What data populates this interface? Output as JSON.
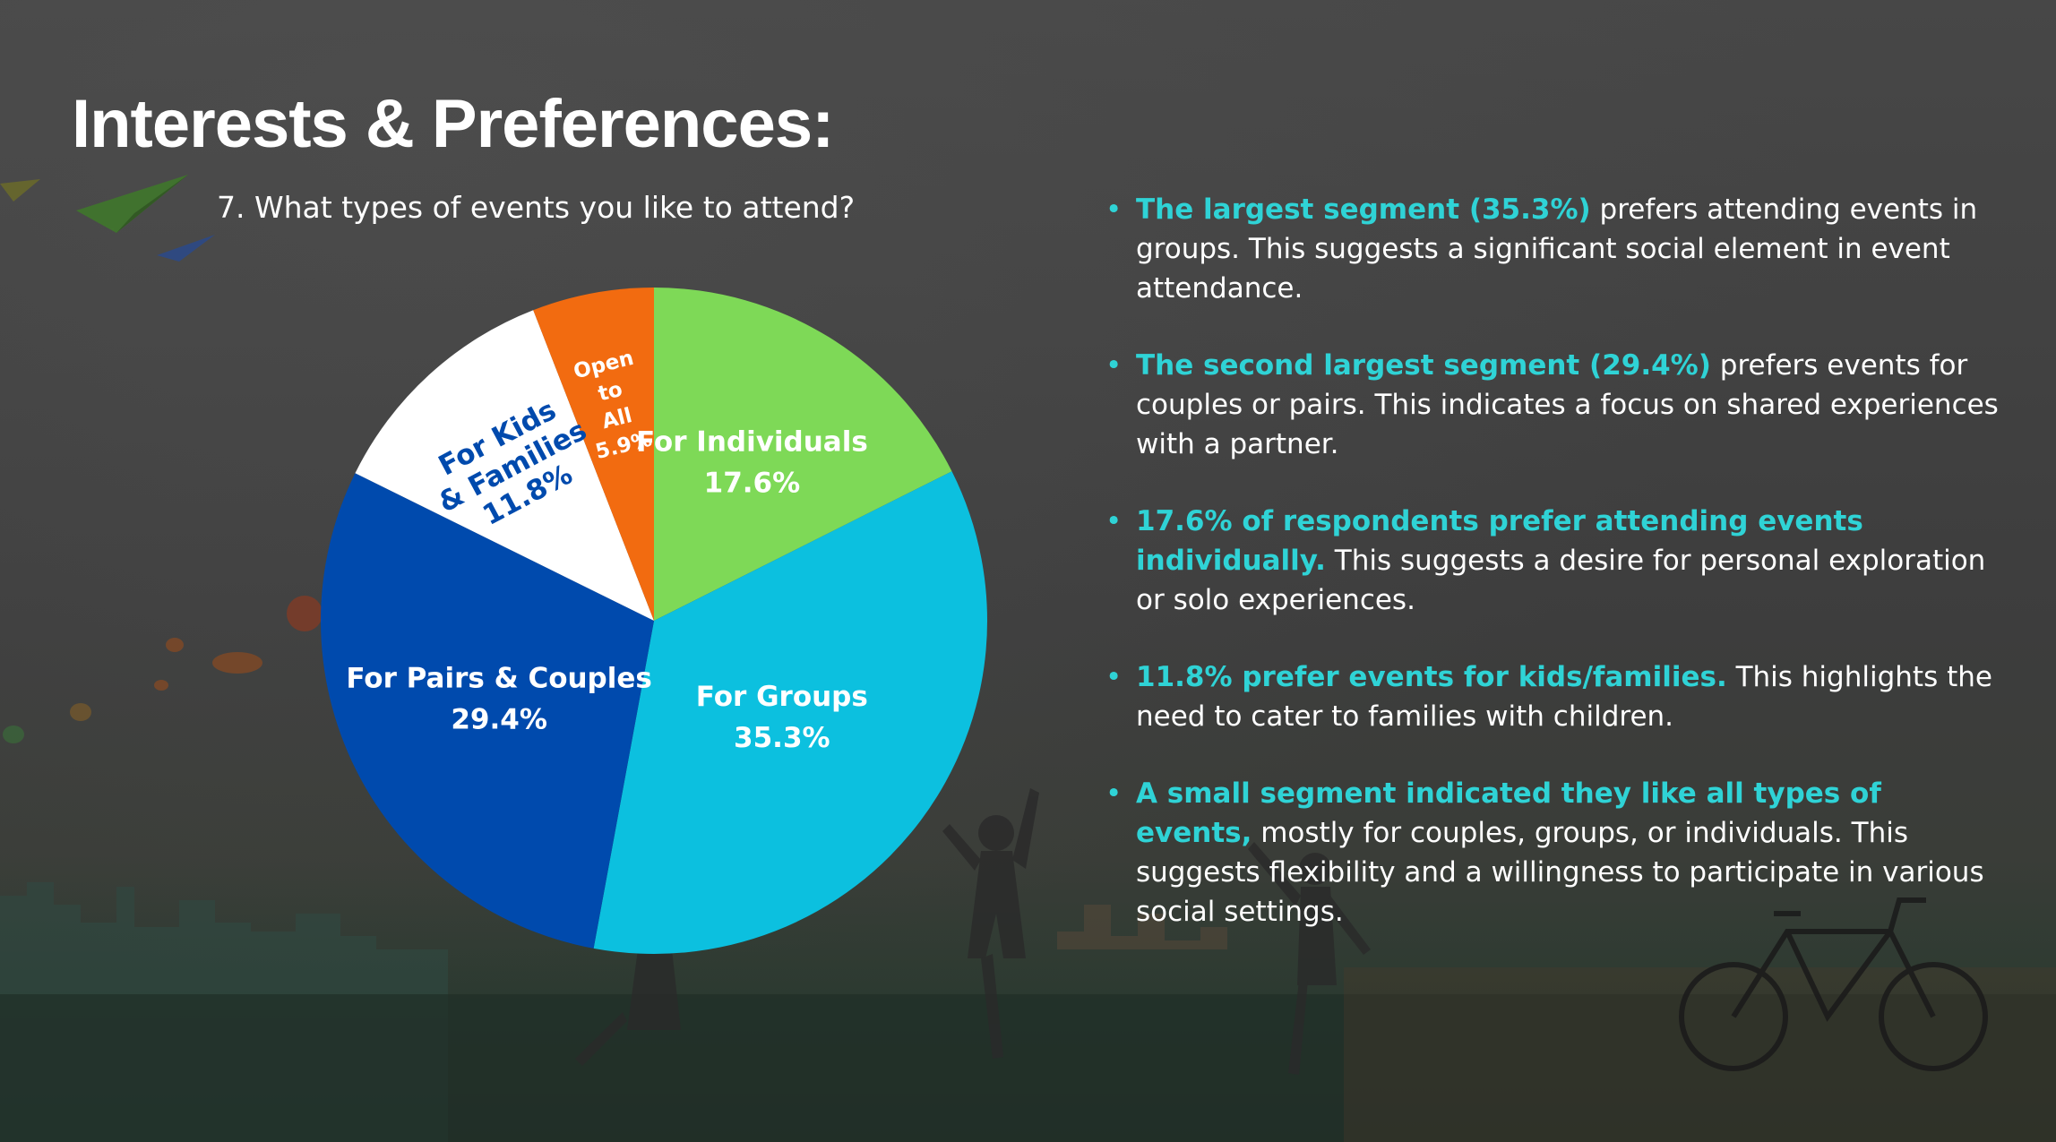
{
  "title": "Interests & Preferences:",
  "question": "7. What types of events you like to attend?",
  "colors": {
    "accent": "#2fd3d6",
    "text": "#ffffff"
  },
  "chart_data": {
    "type": "pie",
    "title": "",
    "start_angle_deg": 0,
    "direction": "clockwise",
    "slices": [
      {
        "label": "For Individuals",
        "value": 17.6,
        "value_label": "17.6%",
        "color": "#7ed957",
        "label_color": "#ffffff"
      },
      {
        "label": "For Groups",
        "value": 35.3,
        "value_label": "35.3%",
        "color": "#0cc0df",
        "label_color": "#ffffff"
      },
      {
        "label": "For Pairs & Couples",
        "value": 29.4,
        "value_label": "29.4%",
        "color": "#004aad",
        "label_color": "#ffffff"
      },
      {
        "label": "For Kids & Families",
        "value": 11.8,
        "value_label": "11.8%",
        "color": "#ffffff",
        "label_color": "#004aad",
        "label_lines": [
          "For Kids",
          "& Families",
          "11.8%"
        ]
      },
      {
        "label": "Open to All",
        "value": 5.9,
        "value_label": "5.9%",
        "color": "#f26b10",
        "label_color": "#ffffff",
        "label_lines": [
          "Open",
          "to",
          "All",
          "5.9%"
        ]
      }
    ]
  },
  "findings": [
    {
      "highlight": "The largest segment (35.3%)",
      "text": " prefers attending events in groups. This suggests a significant social element in event attendance."
    },
    {
      "highlight": "The second largest segment (29.4%)",
      "text": " prefers events for couples or pairs. This indicates a focus on shared experiences with a partner."
    },
    {
      "highlight": "17.6% of respondents prefer attending events individually.",
      "text": " This suggests a desire for personal exploration or solo experiences."
    },
    {
      "highlight": "11.8% prefer events for kids/families.",
      "text": " This highlights the need to cater to families with children."
    },
    {
      "highlight": "A small segment indicated they like all types of events,",
      "text": " mostly for couples, groups, or individuals. This suggests flexibility and a willingness to participate in various social settings."
    }
  ]
}
